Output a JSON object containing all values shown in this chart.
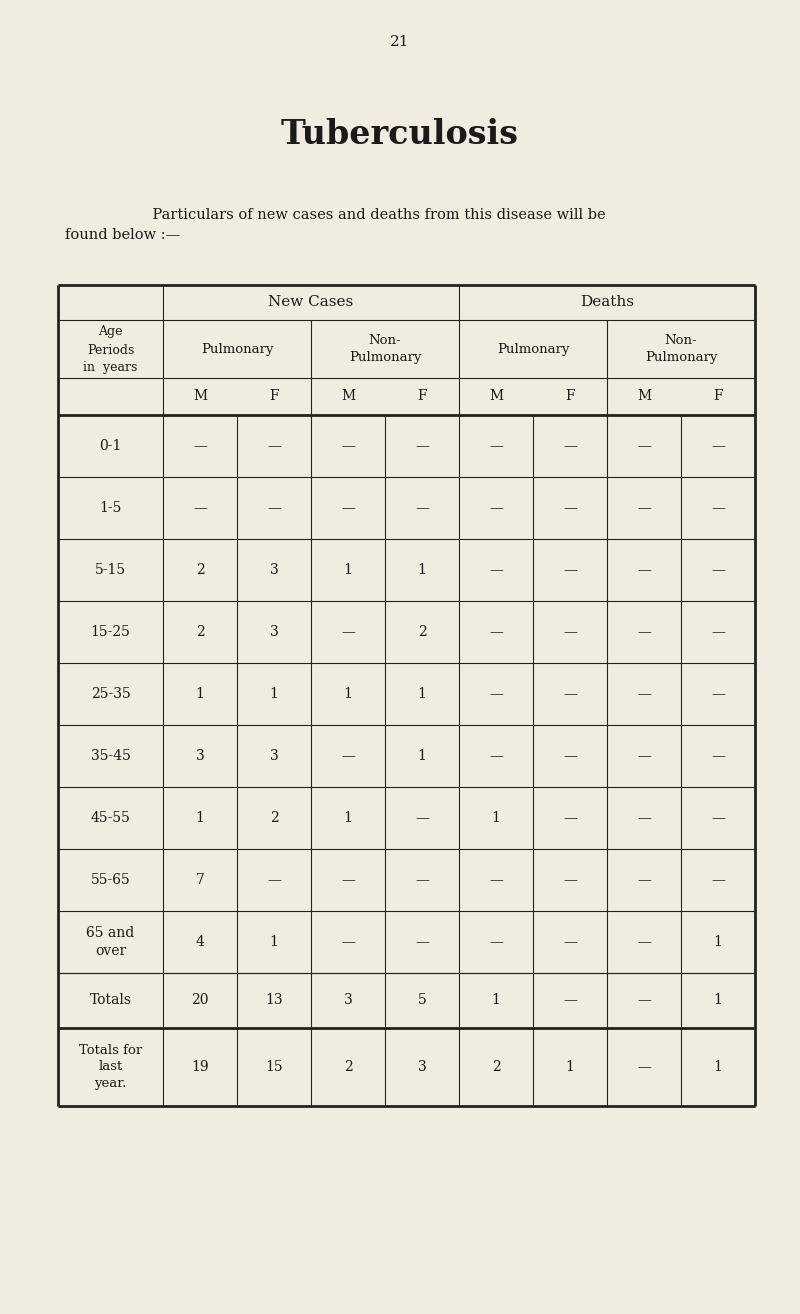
{
  "page_number": "21",
  "title": "Tuberculosis",
  "subtitle_line1": "    Particulars of new cases and deaths from this disease will be",
  "subtitle_line2": "found below :—",
  "background_color": "#f0ece0",
  "text_color": "#1a1a1a",
  "col_header_1": "New Cases",
  "col_header_2": "Deaths",
  "sub_header_1a": "Pulmonary",
  "sub_header_1b": "Non-\nPulmonary",
  "sub_header_2a": "Pulmonary",
  "sub_header_2b": "Non-\nPulmonary",
  "row_header": "Age\nPeriods\nin  years",
  "mf_labels": [
    "M",
    "F",
    "M",
    "F",
    "M",
    "F",
    "M",
    "F"
  ],
  "age_periods": [
    "0-1",
    "1-5",
    "5-15",
    "15-25",
    "25-35",
    "35-45",
    "45-55",
    "55-65",
    "65 and\nover"
  ],
  "table_data": [
    [
      "—",
      "—",
      "—",
      "—",
      "—",
      "—",
      "—",
      "—"
    ],
    [
      "—",
      "—",
      "—",
      "—",
      "—",
      "—",
      "—",
      "—"
    ],
    [
      "2",
      "3",
      "1",
      "1",
      "—",
      "—",
      "—",
      "—"
    ],
    [
      "2",
      "3",
      "—",
      "2",
      "—",
      "—",
      "—",
      "—"
    ],
    [
      "1",
      "1",
      "1",
      "1",
      "—",
      "—",
      "—",
      "—"
    ],
    [
      "3",
      "3",
      "—",
      "1",
      "—",
      "—",
      "—",
      "—"
    ],
    [
      "1",
      "2",
      "1",
      "—",
      "1",
      "—",
      "—",
      "—"
    ],
    [
      "7",
      "—",
      "—",
      "—",
      "—",
      "—",
      "—",
      "—"
    ],
    [
      "4",
      "1",
      "—",
      "—",
      "—",
      "—",
      "—",
      "1"
    ]
  ],
  "totals_row": [
    "20",
    "13",
    "3",
    "5",
    "1",
    "—",
    "—",
    "1"
  ],
  "totals_last_year_row": [
    "19",
    "15",
    "2",
    "3",
    "2",
    "1",
    "—",
    "1"
  ],
  "figwidth": 8.0,
  "figheight": 13.14,
  "dpi": 100
}
